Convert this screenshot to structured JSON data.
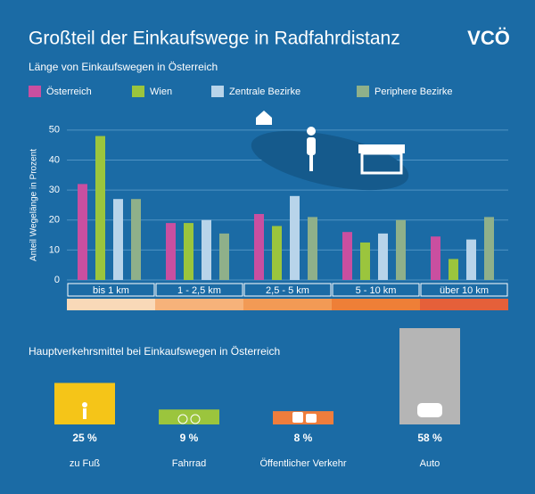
{
  "header": {
    "title": "Großteil der Einkaufswege in Radfahrdistanz",
    "logo": "VCÖ"
  },
  "chart_data": [
    {
      "type": "bar",
      "subtitle": "Länge von Einkaufswegen in Österreich",
      "y_label": "Anteil Wegelänge in Prozent",
      "categories": [
        "bis 1 km",
        "1 - 2,5 km",
        "2,5 - 5 km",
        "5 - 10 km",
        "über 10 km"
      ],
      "series": [
        {
          "name": "Österreich",
          "color": "#c94fa0",
          "values": [
            32,
            19,
            22,
            16,
            14.5
          ]
        },
        {
          "name": "Wien",
          "color": "#9bc53d",
          "values": [
            48,
            19,
            18,
            12.5,
            7
          ]
        },
        {
          "name": "Zentrale Bezirke",
          "color": "#b8d4ea",
          "values": [
            27,
            20,
            28,
            15.5,
            13.5
          ]
        },
        {
          "name": "Periphere Bezirke",
          "color": "#8fb08a",
          "values": [
            27,
            15.5,
            21,
            20,
            21
          ]
        }
      ],
      "ylim": [
        0,
        55
      ],
      "yticks": [
        0,
        10,
        20,
        30,
        40,
        50
      ],
      "grid": true
    },
    {
      "type": "bar",
      "subtitle": "Hauptverkehrsmittel bei Einkaufswegen in Österreich",
      "categories": [
        "zu Fuß",
        "Fahrrad",
        "Öffentlicher Verkehr",
        "Auto"
      ],
      "values": [
        25,
        9,
        8,
        58
      ],
      "value_labels": [
        "25 %",
        "9 %",
        "8 %",
        "58 %"
      ],
      "colors": [
        "#f5c518",
        "#9bc53d",
        "#ef7d3c",
        "#b5b5b5"
      ]
    }
  ]
}
